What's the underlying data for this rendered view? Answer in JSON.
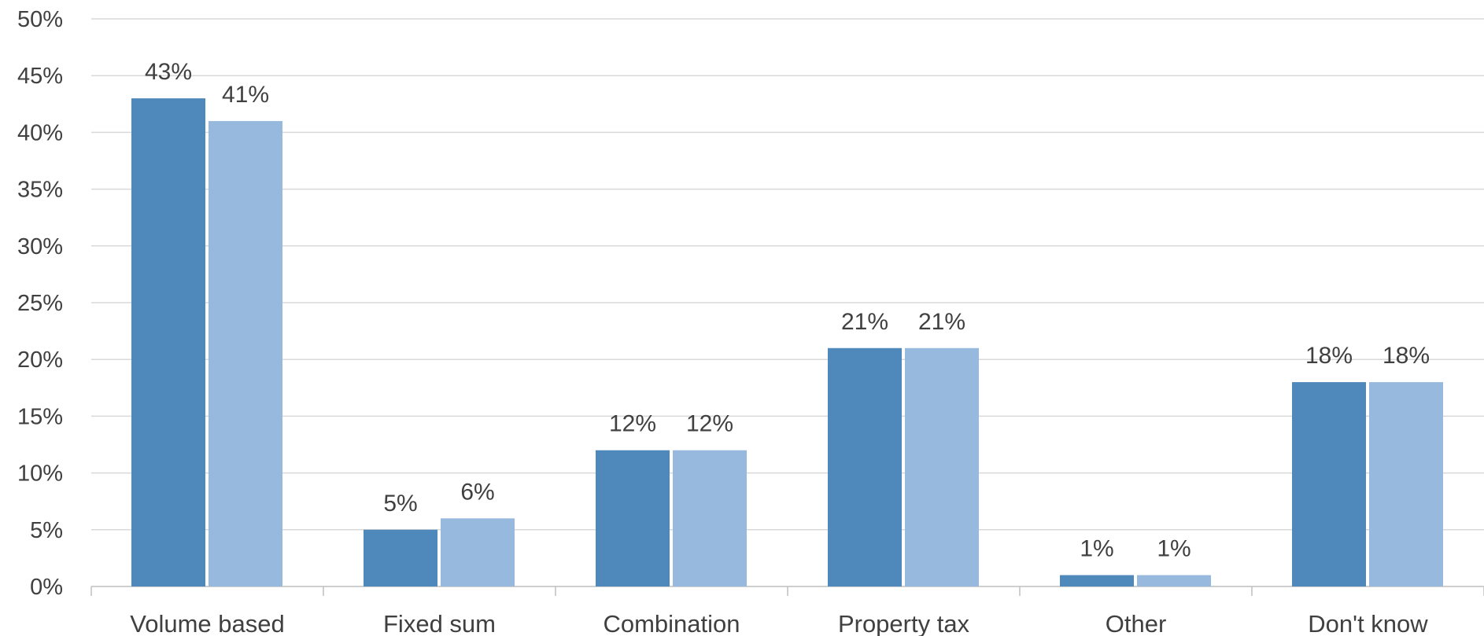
{
  "chart_data": {
    "type": "bar",
    "title": "",
    "xlabel": "",
    "ylabel": "",
    "ylim": [
      0,
      50
    ],
    "y_ticks": [
      "0%",
      "5%",
      "10%",
      "15%",
      "20%",
      "25%",
      "30%",
      "35%",
      "40%",
      "45%",
      "50%"
    ],
    "grid": true,
    "legend": "none",
    "categories": [
      "Volume based",
      "Fixed sum",
      "Combination",
      "Property tax",
      "Other",
      "Don't know"
    ],
    "series": [
      {
        "values": [
          43,
          5,
          12,
          21,
          1,
          18
        ],
        "labels": [
          "43%",
          "5%",
          "12%",
          "21%",
          "1%",
          "18%"
        ],
        "color": "#4f88bb"
      },
      {
        "values": [
          41,
          6,
          12,
          21,
          1,
          18
        ],
        "labels": [
          "41%",
          "6%",
          "12%",
          "21%",
          "1%",
          "18%"
        ],
        "color": "#98b9de"
      }
    ]
  }
}
